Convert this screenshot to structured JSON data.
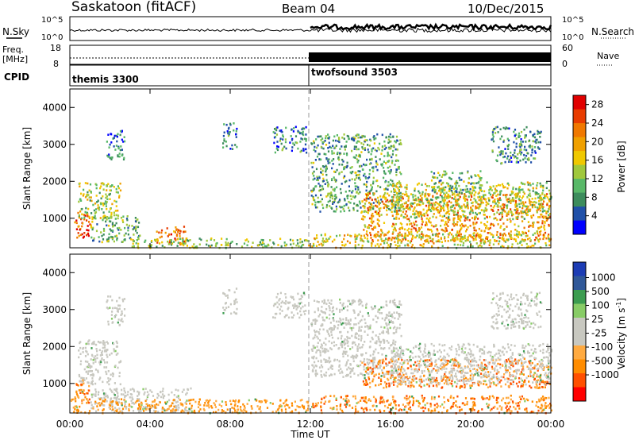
{
  "header": {
    "station": "Saskatoon (fitACF)",
    "beam": "Beam 04",
    "date": "10/Dec/2015"
  },
  "noise_panel": {
    "left_label": "N.Sky",
    "right_label": "N.Search",
    "left_ticks": [
      "10^5",
      "10^0"
    ],
    "right_ticks": [
      "10^5",
      "10^0"
    ]
  },
  "freq_panel": {
    "left_label_1": "Freq.",
    "left_label_2": "[MHz]",
    "left_ticks": [
      "18",
      "8"
    ],
    "right_label": "Nave",
    "right_ticks": [
      "60",
      "0"
    ]
  },
  "cpid_panel": {
    "label": "CPID",
    "programs": [
      {
        "name": "themis 3300",
        "start_hour": 0
      },
      {
        "name": "twofsound 3503",
        "start_hour": 12
      }
    ]
  },
  "colors": {
    "power": [
      "#0000ff",
      "#2050a8",
      "#3c8c5c",
      "#58b868",
      "#a0c83c",
      "#f0c800",
      "#f0a000",
      "#f07800",
      "#e83c00",
      "#e00000"
    ],
    "velocity": [
      "#ff0000",
      "#ff5000",
      "#ff8c00",
      "#ffaa40",
      "#c8c8c0",
      "#c8c8c0",
      "#88cc66",
      "#3c9c50",
      "#305898",
      "#1c3cb4"
    ]
  },
  "chart_data": [
    {
      "type": "heatmap",
      "name": "power",
      "title": "",
      "ylabel": "Slant Range [km]",
      "xlabel": "",
      "ylim": [
        200,
        4500
      ],
      "xlim": [
        0,
        24
      ],
      "yticks": [
        "1000",
        "2000",
        "3000",
        "4000"
      ],
      "xticks": [
        "00:00",
        "04:00",
        "08:00",
        "12:00",
        "16:00",
        "20:00",
        "00:00"
      ],
      "colorbar_label": "Power [dB]",
      "colorbar_ticks": [
        "4",
        "8",
        "12",
        "16",
        "20",
        "24",
        "28"
      ],
      "colorbar_range": [
        0,
        30
      ],
      "regions": [
        {
          "t0": 0.2,
          "t1": 1.0,
          "r0": 500,
          "r1": 1200,
          "intensity": 0.85
        },
        {
          "t0": 0.4,
          "t1": 2.5,
          "r0": 1000,
          "r1": 2000,
          "intensity": 0.45
        },
        {
          "t0": 1.0,
          "t1": 3.5,
          "r0": 380,
          "r1": 1100,
          "intensity": 0.35
        },
        {
          "t0": 4.3,
          "t1": 5.8,
          "r0": 300,
          "r1": 800,
          "intensity": 0.8
        },
        {
          "t0": 3.0,
          "t1": 12.0,
          "r0": 220,
          "r1": 480,
          "intensity": 0.4
        },
        {
          "t0": 1.8,
          "t1": 2.7,
          "r0": 2600,
          "r1": 3400,
          "intensity": 0.2
        },
        {
          "t0": 7.6,
          "t1": 8.3,
          "r0": 2900,
          "r1": 3600,
          "intensity": 0.2
        },
        {
          "t0": 10.1,
          "t1": 11.8,
          "r0": 2800,
          "r1": 3500,
          "intensity": 0.2
        },
        {
          "t0": 12.0,
          "t1": 16.5,
          "r0": 1200,
          "r1": 3300,
          "intensity": 0.3
        },
        {
          "t0": 14.5,
          "t1": 24.0,
          "r0": 400,
          "r1": 1700,
          "intensity": 0.7
        },
        {
          "t0": 16.0,
          "t1": 24.0,
          "r0": 1000,
          "r1": 2000,
          "intensity": 0.45
        },
        {
          "t0": 18.0,
          "t1": 20.5,
          "r0": 1700,
          "r1": 2300,
          "intensity": 0.35
        },
        {
          "t0": 12.0,
          "t1": 24.0,
          "r0": 220,
          "r1": 600,
          "intensity": 0.55
        },
        {
          "t0": 21.0,
          "t1": 23.5,
          "r0": 2500,
          "r1": 3500,
          "intensity": 0.25
        }
      ]
    },
    {
      "type": "heatmap",
      "name": "velocity",
      "title": "",
      "ylabel": "Slant Range [km]",
      "xlabel": "Time UT",
      "ylim": [
        200,
        4500
      ],
      "xlim": [
        0,
        24
      ],
      "yticks": [
        "1000",
        "2000",
        "3000",
        "4000"
      ],
      "xticks": [
        "00:00",
        "04:00",
        "08:00",
        "12:00",
        "16:00",
        "20:00",
        "00:00"
      ],
      "colorbar_label": "Velocity [m s^-1]",
      "colorbar_ticks": [
        "1000",
        "500",
        "100",
        "25",
        "-25",
        "-100",
        "-500",
        "-1000"
      ],
      "regions": [
        {
          "t0": 0.2,
          "t1": 1.0,
          "r0": 500,
          "r1": 1200,
          "v": "orange"
        },
        {
          "t0": 0.4,
          "t1": 2.5,
          "r0": 1000,
          "r1": 2200,
          "v": "grey"
        },
        {
          "t0": 1.0,
          "t1": 6.0,
          "r0": 250,
          "r1": 900,
          "v": "grey"
        },
        {
          "t0": 0.0,
          "t1": 12.0,
          "r0": 220,
          "r1": 600,
          "v": "lightorange"
        },
        {
          "t0": 1.8,
          "t1": 2.7,
          "r0": 2600,
          "r1": 3400,
          "v": "grey"
        },
        {
          "t0": 7.6,
          "t1": 8.3,
          "r0": 2900,
          "r1": 3600,
          "v": "grey"
        },
        {
          "t0": 10.1,
          "t1": 11.8,
          "r0": 2800,
          "r1": 3500,
          "v": "grey"
        },
        {
          "t0": 12.0,
          "t1": 16.5,
          "r0": 1200,
          "r1": 3300,
          "v": "grey"
        },
        {
          "t0": 14.5,
          "t1": 24.0,
          "r0": 900,
          "r1": 1700,
          "v": "orange"
        },
        {
          "t0": 16.0,
          "t1": 24.0,
          "r0": 1000,
          "r1": 2100,
          "v": "grey"
        },
        {
          "t0": 12.0,
          "t1": 24.0,
          "r0": 220,
          "r1": 700,
          "v": "orange"
        },
        {
          "t0": 21.0,
          "t1": 23.5,
          "r0": 2500,
          "r1": 3500,
          "v": "grey"
        }
      ]
    }
  ]
}
